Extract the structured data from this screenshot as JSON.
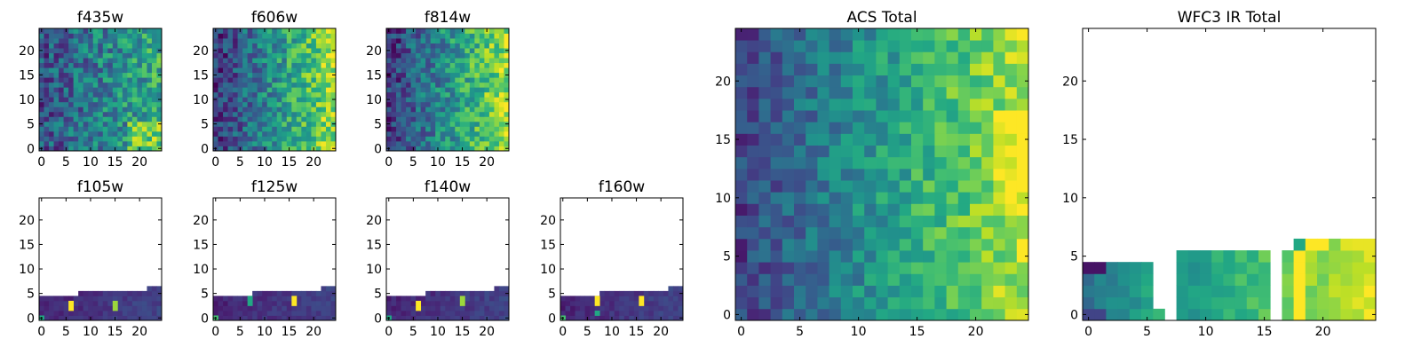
{
  "chart_data": [
    {
      "id": "f435w",
      "type": "heatmap",
      "title": "f435w",
      "xlim": [
        0,
        25
      ],
      "ylim": [
        0,
        25
      ],
      "xticks": [
        "0",
        "5",
        "10",
        "15",
        "20"
      ],
      "yticks": [
        "0",
        "5",
        "10",
        "15",
        "20"
      ],
      "colormap": "viridis",
      "pattern": "noisy",
      "coverage_rows": 25
    },
    {
      "id": "f606w",
      "type": "heatmap",
      "title": "f606w",
      "xlim": [
        0,
        25
      ],
      "ylim": [
        0,
        25
      ],
      "xticks": [
        "0",
        "5",
        "10",
        "15",
        "20"
      ],
      "yticks": [
        "0",
        "5",
        "10",
        "15",
        "20"
      ],
      "colormap": "viridis",
      "pattern": "gradient",
      "coverage_rows": 25
    },
    {
      "id": "f814w",
      "type": "heatmap",
      "title": "f814w",
      "xlim": [
        0,
        25
      ],
      "ylim": [
        0,
        25
      ],
      "xticks": [
        "0",
        "5",
        "10",
        "15",
        "20"
      ],
      "yticks": [
        "0",
        "5",
        "10",
        "15",
        "20"
      ],
      "colormap": "viridis",
      "pattern": "gradient",
      "coverage_rows": 25
    },
    {
      "id": "f105w",
      "type": "heatmap",
      "title": "f105w",
      "xlim": [
        0,
        25
      ],
      "ylim": [
        0,
        25
      ],
      "xticks": [
        "0",
        "5",
        "10",
        "15",
        "20"
      ],
      "yticks": [
        "0",
        "5",
        "10",
        "15",
        "20"
      ],
      "colormap": "viridis",
      "pattern": "partial-dark",
      "coverage_rows": [
        5,
        5,
        5,
        5,
        5,
        5,
        5,
        5,
        6,
        6,
        6,
        6,
        6,
        6,
        6,
        6,
        6,
        6,
        6,
        6,
        6,
        6,
        7,
        7,
        7
      ],
      "highlights": [
        {
          "col": 6,
          "row": 2,
          "rows": 2,
          "value": 1.0
        },
        {
          "col": 15,
          "row": 2,
          "rows": 2,
          "value": 0.85
        },
        {
          "col": 0,
          "row": 0,
          "rows": 1,
          "value": 0.6
        }
      ]
    },
    {
      "id": "f125w",
      "type": "heatmap",
      "title": "f125w",
      "xlim": [
        0,
        25
      ],
      "ylim": [
        0,
        25
      ],
      "xticks": [
        "0",
        "5",
        "10",
        "15",
        "20"
      ],
      "yticks": [
        "0",
        "5",
        "10",
        "15",
        "20"
      ],
      "colormap": "viridis",
      "pattern": "partial-dark",
      "coverage_rows": [
        5,
        5,
        5,
        5,
        5,
        5,
        5,
        5,
        6,
        6,
        6,
        6,
        6,
        6,
        6,
        6,
        6,
        6,
        6,
        6,
        6,
        6,
        7,
        7,
        7
      ],
      "highlights": [
        {
          "col": 7,
          "row": 3,
          "rows": 2,
          "value": 0.6
        },
        {
          "col": 16,
          "row": 3,
          "rows": 2,
          "value": 1.0
        },
        {
          "col": 0,
          "row": 0,
          "rows": 1,
          "value": 0.7
        }
      ]
    },
    {
      "id": "f140w",
      "type": "heatmap",
      "title": "f140w",
      "xlim": [
        0,
        25
      ],
      "ylim": [
        0,
        25
      ],
      "xticks": [
        "0",
        "5",
        "10",
        "15",
        "20"
      ],
      "yticks": [
        "0",
        "5",
        "10",
        "15",
        "20"
      ],
      "colormap": "viridis",
      "pattern": "partial-dark",
      "coverage_rows": [
        5,
        5,
        5,
        5,
        5,
        5,
        5,
        5,
        6,
        6,
        6,
        6,
        6,
        6,
        6,
        6,
        6,
        6,
        6,
        6,
        6,
        6,
        7,
        7,
        7
      ],
      "highlights": [
        {
          "col": 6,
          "row": 2,
          "rows": 2,
          "value": 1.0
        },
        {
          "col": 15,
          "row": 3,
          "rows": 2,
          "value": 0.85
        },
        {
          "col": 0,
          "row": 0,
          "rows": 1,
          "value": 0.6
        }
      ]
    },
    {
      "id": "f160w",
      "type": "heatmap",
      "title": "f160w",
      "xlim": [
        0,
        25
      ],
      "ylim": [
        0,
        25
      ],
      "xticks": [
        "0",
        "5",
        "10",
        "15",
        "20"
      ],
      "yticks": [
        "0",
        "5",
        "10",
        "15",
        "20"
      ],
      "colormap": "viridis",
      "pattern": "partial-dark",
      "coverage_rows": [
        5,
        5,
        5,
        5,
        5,
        5,
        5,
        5,
        6,
        6,
        6,
        6,
        6,
        6,
        6,
        6,
        6,
        6,
        6,
        6,
        6,
        6,
        7,
        7,
        7
      ],
      "highlights": [
        {
          "col": 7,
          "row": 3,
          "rows": 2,
          "value": 1.0
        },
        {
          "col": 16,
          "row": 3,
          "rows": 2,
          "value": 1.0
        },
        {
          "col": 0,
          "row": 0,
          "rows": 1,
          "value": 0.7
        },
        {
          "col": 7,
          "row": 1,
          "rows": 1,
          "value": 0.6
        }
      ]
    },
    {
      "id": "acs-total",
      "type": "heatmap",
      "title": "ACS Total",
      "xlim": [
        0,
        25
      ],
      "ylim": [
        0,
        25
      ],
      "xticks": [
        "0",
        "5",
        "10",
        "15",
        "20"
      ],
      "yticks": [
        "0",
        "5",
        "10",
        "15",
        "20"
      ],
      "colormap": "viridis",
      "pattern": "gradient-strong",
      "coverage_rows": 25
    },
    {
      "id": "wfc3-ir-total",
      "type": "heatmap",
      "title": "WFC3 IR Total",
      "xlim": [
        0,
        25
      ],
      "ylim": [
        0,
        25
      ],
      "xticks": [
        "0",
        "5",
        "10",
        "15",
        "20"
      ],
      "yticks": [
        "0",
        "5",
        "10",
        "15",
        "20"
      ],
      "colormap": "viridis",
      "pattern": "ir-total",
      "coverage_rows": [
        5,
        5,
        5,
        5,
        5,
        5,
        1,
        0,
        6,
        6,
        6,
        6,
        6,
        6,
        6,
        6,
        0,
        6,
        7,
        7,
        7,
        7,
        7,
        7,
        7
      ]
    }
  ]
}
